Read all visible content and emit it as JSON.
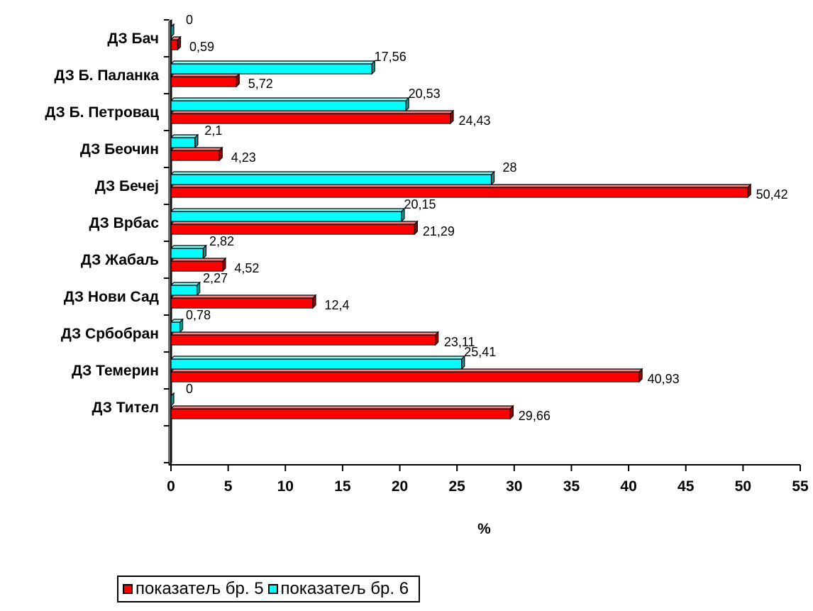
{
  "chart_data": {
    "type": "bar",
    "orientation": "horizontal",
    "categories": [
      "ДЗ Бач",
      "ДЗ Б. Паланка",
      "ДЗ Б. Петровац",
      "ДЗ Беочин",
      "ДЗ Бечеј",
      "ДЗ Врбас",
      "ДЗ Жабаљ",
      "ДЗ Нови Сад",
      "ДЗ Србобран",
      "ДЗ Темерин",
      "ДЗ Тител"
    ],
    "series": [
      {
        "name": "показатељ бр. 6",
        "color": "#00ffff",
        "values": [
          0,
          17.56,
          20.53,
          2.1,
          28,
          20.15,
          2.82,
          2.27,
          0.78,
          25.41,
          0
        ],
        "labels": [
          "0",
          "17,56",
          "20,53",
          "2,1",
          "28",
          "20,15",
          "2,82",
          "2,27",
          "0,78",
          "25,41",
          "0"
        ]
      },
      {
        "name": "показатељ бр. 5",
        "color": "#ff0000",
        "values": [
          0.59,
          5.72,
          24.43,
          4.23,
          50.42,
          21.29,
          4.52,
          12.4,
          23.11,
          40.93,
          29.66
        ],
        "labels": [
          "0,59",
          "5,72",
          "24,43",
          "4,23",
          "50,42",
          "21,29",
          "4,52",
          "12,4",
          "23,11",
          "40,93",
          "29,66"
        ]
      }
    ],
    "xlim": [
      0,
      55
    ],
    "x_ticks": [
      "0",
      "5",
      "10",
      "15",
      "20",
      "25",
      "30",
      "35",
      "40",
      "45",
      "50",
      "55"
    ],
    "xlabel": "%",
    "grid": false,
    "legend_position": "bottom-left",
    "legend_items": [
      {
        "name": "показатељ бр. 5",
        "color": "#ff0000"
      },
      {
        "name": "показатељ бр. 6",
        "color": "#00ffff"
      }
    ]
  }
}
